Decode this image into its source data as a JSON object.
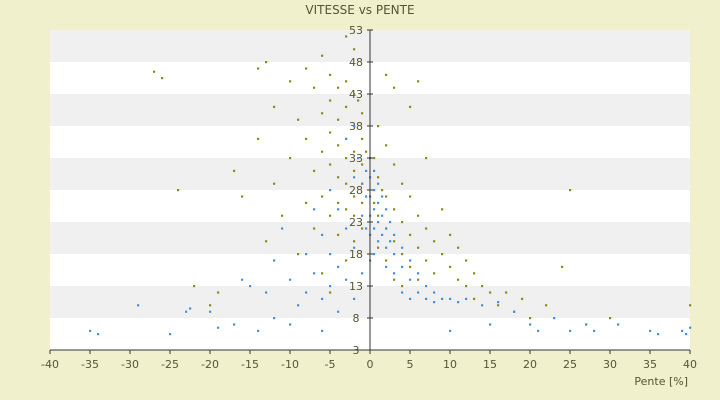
{
  "chart_data": {
    "type": "scatter",
    "title": "VITESSE vs PENTE",
    "xlabel": "Pente [%]",
    "ylabel": "",
    "xlim": [
      -40,
      40
    ],
    "ylim": [
      3,
      53
    ],
    "x_ticks": [
      "-40",
      "-35",
      "-30",
      "-25",
      "-20",
      "-15",
      "-10",
      "-5",
      "0",
      "5",
      "10",
      "15",
      "20",
      "25",
      "30",
      "35",
      "40"
    ],
    "y_ticks": [
      "3",
      "8",
      "13",
      "18",
      "23",
      "28",
      "33",
      "38",
      "43",
      "48",
      "53"
    ],
    "grid": "alternating horizontal bands",
    "colors": {
      "background": "#f0f0cc",
      "plot_band_light": "#ffffff",
      "plot_band_dark": "#f0f0f0",
      "axis": "#333333",
      "series_olive": "#8a8a1f",
      "series_blue": "#4a90d9"
    },
    "series": [
      {
        "color": "#8a8a1f",
        "points": [
          [
            -27.0,
            46.5
          ],
          [
            -26.0,
            45.5
          ],
          [
            -24.0,
            28.0
          ],
          [
            -22.0,
            13.0
          ],
          [
            -20.0,
            10.0
          ],
          [
            -19.0,
            12.0
          ],
          [
            -17.0,
            31.0
          ],
          [
            -16.0,
            27.0
          ],
          [
            -14.0,
            47.0
          ],
          [
            -14.0,
            36.0
          ],
          [
            -13.0,
            48.0
          ],
          [
            -13.0,
            20.0
          ],
          [
            -12.0,
            41.0
          ],
          [
            -12.0,
            29.0
          ],
          [
            -11.0,
            24.0
          ],
          [
            -10.0,
            45.0
          ],
          [
            -10.0,
            33.0
          ],
          [
            -9.0,
            39.0
          ],
          [
            -9.0,
            18.0
          ],
          [
            -8.0,
            47.0
          ],
          [
            -8.0,
            36.0
          ],
          [
            -8.0,
            26.0
          ],
          [
            -7.0,
            44.0
          ],
          [
            -7.0,
            31.0
          ],
          [
            -7.0,
            22.0
          ],
          [
            -6.0,
            49.0
          ],
          [
            -6.0,
            40.0
          ],
          [
            -6.0,
            34.0
          ],
          [
            -6.0,
            27.0
          ],
          [
            -6.0,
            15.0
          ],
          [
            -5.0,
            46.0
          ],
          [
            -5.0,
            42.0
          ],
          [
            -5.0,
            37.0
          ],
          [
            -5.0,
            32.0
          ],
          [
            -5.0,
            24.0
          ],
          [
            -5.0,
            12.0
          ],
          [
            -4.0,
            44.0
          ],
          [
            -4.0,
            39.0
          ],
          [
            -4.0,
            35.0
          ],
          [
            -4.0,
            30.0
          ],
          [
            -4.0,
            26.0
          ],
          [
            -4.0,
            21.0
          ],
          [
            -3.0,
            52.0
          ],
          [
            -3.0,
            45.0
          ],
          [
            -3.0,
            41.0
          ],
          [
            -3.0,
            36.0
          ],
          [
            -3.0,
            33.0
          ],
          [
            -3.0,
            29.0
          ],
          [
            -3.0,
            25.0
          ],
          [
            -3.0,
            17.0
          ],
          [
            -2.0,
            50.0
          ],
          [
            -2.0,
            43.0
          ],
          [
            -2.0,
            38.0
          ],
          [
            -2.0,
            34.0
          ],
          [
            -2.0,
            31.0
          ],
          [
            -2.0,
            27.0
          ],
          [
            -2.0,
            24.0
          ],
          [
            -2.0,
            20.0
          ],
          [
            -1.5,
            42.0
          ],
          [
            -1.0,
            40.0
          ],
          [
            -1.0,
            36.0
          ],
          [
            -1.0,
            32.0
          ],
          [
            -1.0,
            29.0
          ],
          [
            -1.0,
            26.0
          ],
          [
            -1.0,
            22.0
          ],
          [
            -0.5,
            34.0
          ],
          [
            0.5,
            33.0
          ],
          [
            0.5,
            26.0
          ],
          [
            1.0,
            38.0
          ],
          [
            1.0,
            30.0
          ],
          [
            1.0,
            24.0
          ],
          [
            1.0,
            19.0
          ],
          [
            1.5,
            28.0
          ],
          [
            2.0,
            46.0
          ],
          [
            2.0,
            35.0
          ],
          [
            2.0,
            27.0
          ],
          [
            2.0,
            22.0
          ],
          [
            2.0,
            17.0
          ],
          [
            3.0,
            44.0
          ],
          [
            3.0,
            32.0
          ],
          [
            3.0,
            25.0
          ],
          [
            3.0,
            20.0
          ],
          [
            3.0,
            14.0
          ],
          [
            4.0,
            29.0
          ],
          [
            4.0,
            23.0
          ],
          [
            4.0,
            18.0
          ],
          [
            4.0,
            13.0
          ],
          [
            5.0,
            41.0
          ],
          [
            5.0,
            27.0
          ],
          [
            5.0,
            21.0
          ],
          [
            5.0,
            16.0
          ],
          [
            6.0,
            45.0
          ],
          [
            6.0,
            24.0
          ],
          [
            6.0,
            19.0
          ],
          [
            6.0,
            14.0
          ],
          [
            7.0,
            33.0
          ],
          [
            7.0,
            22.0
          ],
          [
            7.0,
            17.0
          ],
          [
            8.0,
            20.0
          ],
          [
            8.0,
            15.0
          ],
          [
            9.0,
            25.0
          ],
          [
            9.0,
            18.0
          ],
          [
            10.0,
            21.0
          ],
          [
            10.0,
            16.0
          ],
          [
            11.0,
            19.0
          ],
          [
            11.0,
            14.0
          ],
          [
            12.0,
            17.0
          ],
          [
            12.0,
            13.0
          ],
          [
            13.0,
            15.0
          ],
          [
            13.0,
            11.0
          ],
          [
            14.0,
            13.0
          ],
          [
            15.0,
            12.0
          ],
          [
            16.0,
            10.0
          ],
          [
            17.0,
            12.0
          ],
          [
            18.0,
            9.0
          ],
          [
            19.0,
            11.0
          ],
          [
            20.0,
            8.0
          ],
          [
            22.0,
            10.0
          ],
          [
            24.0,
            16.0
          ],
          [
            25.0,
            28.0
          ],
          [
            27.0,
            7.0
          ],
          [
            30.0,
            8.0
          ],
          [
            40.0,
            10.0
          ]
        ]
      },
      {
        "color": "#4a90d9",
        "points": [
          [
            -35.0,
            6.0
          ],
          [
            -34.0,
            5.5
          ],
          [
            -29.0,
            10.0
          ],
          [
            -25.0,
            5.5
          ],
          [
            -23.0,
            9.0
          ],
          [
            -22.5,
            9.5
          ],
          [
            -20.0,
            9.0
          ],
          [
            -19.0,
            6.5
          ],
          [
            -17.0,
            7.0
          ],
          [
            -16.0,
            14.0
          ],
          [
            -15.0,
            13.0
          ],
          [
            -14.0,
            6.0
          ],
          [
            -13.0,
            12.0
          ],
          [
            -12.0,
            17.0
          ],
          [
            -12.0,
            8.0
          ],
          [
            -11.0,
            22.0
          ],
          [
            -10.0,
            14.0
          ],
          [
            -10.0,
            7.0
          ],
          [
            -9.0,
            10.0
          ],
          [
            -8.0,
            18.0
          ],
          [
            -8.0,
            12.0
          ],
          [
            -7.0,
            25.0
          ],
          [
            -7.0,
            15.0
          ],
          [
            -6.0,
            21.0
          ],
          [
            -6.0,
            11.0
          ],
          [
            -6.0,
            6.0
          ],
          [
            -5.0,
            28.0
          ],
          [
            -5.0,
            18.0
          ],
          [
            -5.0,
            13.0
          ],
          [
            -4.0,
            25.0
          ],
          [
            -4.0,
            16.0
          ],
          [
            -4.0,
            9.0
          ],
          [
            -3.0,
            36.0
          ],
          [
            -3.0,
            22.0
          ],
          [
            -3.0,
            14.0
          ],
          [
            -2.0,
            38.0
          ],
          [
            -2.0,
            30.0
          ],
          [
            -2.0,
            19.0
          ],
          [
            -2.0,
            11.0
          ],
          [
            -1.5,
            33.0
          ],
          [
            -1.0,
            29.0
          ],
          [
            -1.0,
            24.0
          ],
          [
            -1.0,
            15.0
          ],
          [
            -0.5,
            31.0
          ],
          [
            -0.5,
            27.0
          ],
          [
            -0.5,
            22.0
          ],
          [
            0.0,
            33.0
          ],
          [
            0.0,
            30.0
          ],
          [
            0.0,
            27.0
          ],
          [
            0.0,
            24.0
          ],
          [
            0.0,
            21.0
          ],
          [
            0.0,
            17.0
          ],
          [
            0.5,
            31.0
          ],
          [
            0.5,
            28.0
          ],
          [
            0.5,
            25.0
          ],
          [
            0.5,
            22.0
          ],
          [
            0.5,
            18.0
          ],
          [
            1.0,
            29.0
          ],
          [
            1.0,
            26.0
          ],
          [
            1.0,
            23.0
          ],
          [
            1.0,
            20.0
          ],
          [
            1.5,
            27.0
          ],
          [
            1.5,
            24.0
          ],
          [
            1.5,
            21.0
          ],
          [
            2.0,
            25.0
          ],
          [
            2.0,
            22.0
          ],
          [
            2.0,
            19.0
          ],
          [
            2.0,
            16.0
          ],
          [
            2.5,
            23.0
          ],
          [
            2.5,
            20.0
          ],
          [
            3.0,
            21.0
          ],
          [
            3.0,
            18.0
          ],
          [
            3.0,
            15.0
          ],
          [
            4.0,
            19.0
          ],
          [
            4.0,
            16.0
          ],
          [
            4.0,
            12.0
          ],
          [
            5.0,
            17.0
          ],
          [
            5.0,
            14.0
          ],
          [
            5.0,
            11.0
          ],
          [
            6.0,
            15.0
          ],
          [
            6.0,
            12.0
          ],
          [
            7.0,
            13.0
          ],
          [
            7.0,
            11.0
          ],
          [
            8.0,
            12.0
          ],
          [
            8.0,
            10.5
          ],
          [
            9.0,
            11.0
          ],
          [
            10.0,
            11.0
          ],
          [
            10.0,
            6.0
          ],
          [
            11.0,
            10.5
          ],
          [
            12.0,
            11.0
          ],
          [
            14.0,
            10.0
          ],
          [
            15.0,
            7.0
          ],
          [
            16.0,
            10.5
          ],
          [
            18.0,
            9.0
          ],
          [
            20.0,
            7.0
          ],
          [
            21.0,
            6.0
          ],
          [
            23.0,
            8.0
          ],
          [
            25.0,
            6.0
          ],
          [
            27.0,
            7.0
          ],
          [
            28.0,
            6.0
          ],
          [
            31.0,
            7.0
          ],
          [
            35.0,
            6.0
          ],
          [
            36.0,
            5.5
          ],
          [
            39.0,
            6.0
          ],
          [
            39.5,
            5.5
          ],
          [
            40.0,
            6.5
          ]
        ]
      }
    ]
  }
}
